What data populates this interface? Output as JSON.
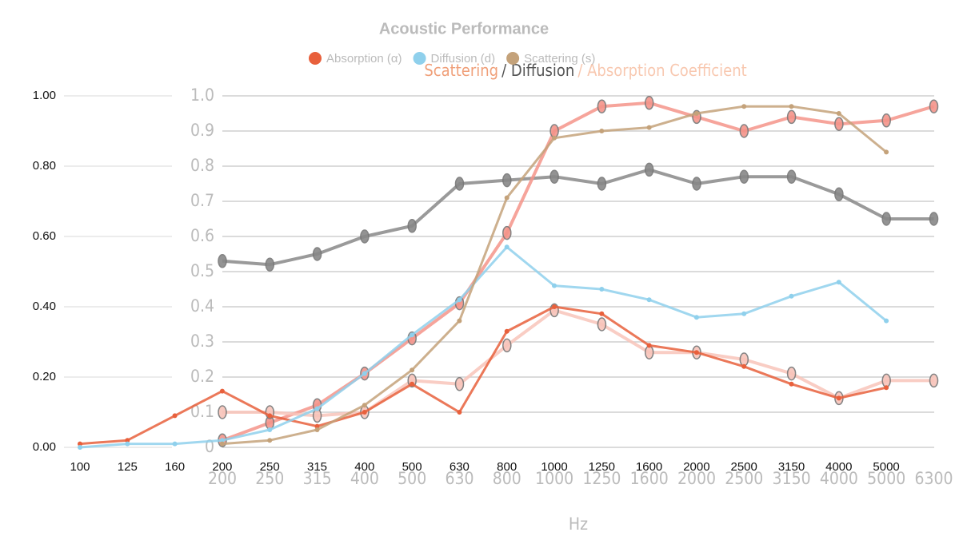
{
  "chart_data": [
    {
      "type": "line",
      "title": "Acoustic Performance",
      "categories": [
        "100",
        "125",
        "160",
        "200",
        "250",
        "315",
        "400",
        "500",
        "630",
        "800",
        "1000",
        "1250",
        "1600",
        "2000",
        "2500",
        "3150",
        "4000",
        "5000"
      ],
      "series": [
        {
          "name": "Absorption (α)",
          "color": "#e8603c",
          "values": [
            0.01,
            0.02,
            0.09,
            0.16,
            0.09,
            0.06,
            0.1,
            0.18,
            0.1,
            0.33,
            0.4,
            0.38,
            0.29,
            0.27,
            0.23,
            0.18,
            0.14,
            0.17
          ]
        },
        {
          "name": "Diffusion (d)",
          "color": "#8fd0ec",
          "values": [
            0,
            0.01,
            0.01,
            0.02,
            0.05,
            0.11,
            0.21,
            0.32,
            0.42,
            0.57,
            0.46,
            0.45,
            0.42,
            0.37,
            0.38,
            0.43,
            0.47,
            0.36
          ]
        },
        {
          "name": "Scattering (s)",
          "color": "#c4a27a",
          "values": [
            null,
            null,
            null,
            0.01,
            0.02,
            0.05,
            0.12,
            0.22,
            0.36,
            0.71,
            0.88,
            0.9,
            0.91,
            0.95,
            0.97,
            0.97,
            0.95,
            0.84
          ]
        }
      ],
      "ylim": [
        0,
        1
      ],
      "yticks": [
        {
          "value": 0,
          "label": "0.00"
        },
        {
          "value": 0.2,
          "label": "0.20"
        },
        {
          "value": 0.4,
          "label": "0.40"
        },
        {
          "value": 0.6,
          "label": "0.60"
        },
        {
          "value": 0.8,
          "label": "0.80"
        },
        {
          "value": 1,
          "label": "1.00"
        }
      ],
      "grid": true
    },
    {
      "type": "line",
      "title_parts": [
        "Scattering",
        "/ Diffusion",
        "/ Absorption Coefficient"
      ],
      "xlabel": "Hz",
      "categories": [
        "200",
        "250",
        "315",
        "400",
        "500",
        "630",
        "800",
        "1000",
        "1250",
        "1600",
        "2000",
        "2500",
        "3150",
        "4000",
        "5000",
        "6300"
      ],
      "series": [
        {
          "color": "#888888",
          "values": [
            0.53,
            0.52,
            0.55,
            0.6,
            0.63,
            0.75,
            0.76,
            0.77,
            0.75,
            0.79,
            0.75,
            0.77,
            0.77,
            0.72,
            0.65,
            0.65
          ]
        },
        {
          "color": "#f4948a",
          "values": [
            0.02,
            0.07,
            0.12,
            0.21,
            0.31,
            0.41,
            0.61,
            0.9,
            0.97,
            0.98,
            0.94,
            0.9,
            0.94,
            0.92,
            0.93,
            0.97
          ]
        },
        {
          "color": "#f8c4ba",
          "values": [
            0.1,
            0.1,
            0.09,
            0.1,
            0.19,
            0.18,
            0.29,
            0.39,
            0.35,
            0.27,
            0.27,
            0.25,
            0.21,
            0.14,
            0.19,
            0.19
          ]
        }
      ],
      "ylim": [
        0,
        1
      ],
      "yticks": [
        0,
        0.1,
        0.2,
        0.3,
        0.4,
        0.5,
        0.6,
        0.7,
        0.8,
        0.9,
        {
          "value": 1,
          "label": "1.0"
        }
      ],
      "grid": true
    }
  ]
}
